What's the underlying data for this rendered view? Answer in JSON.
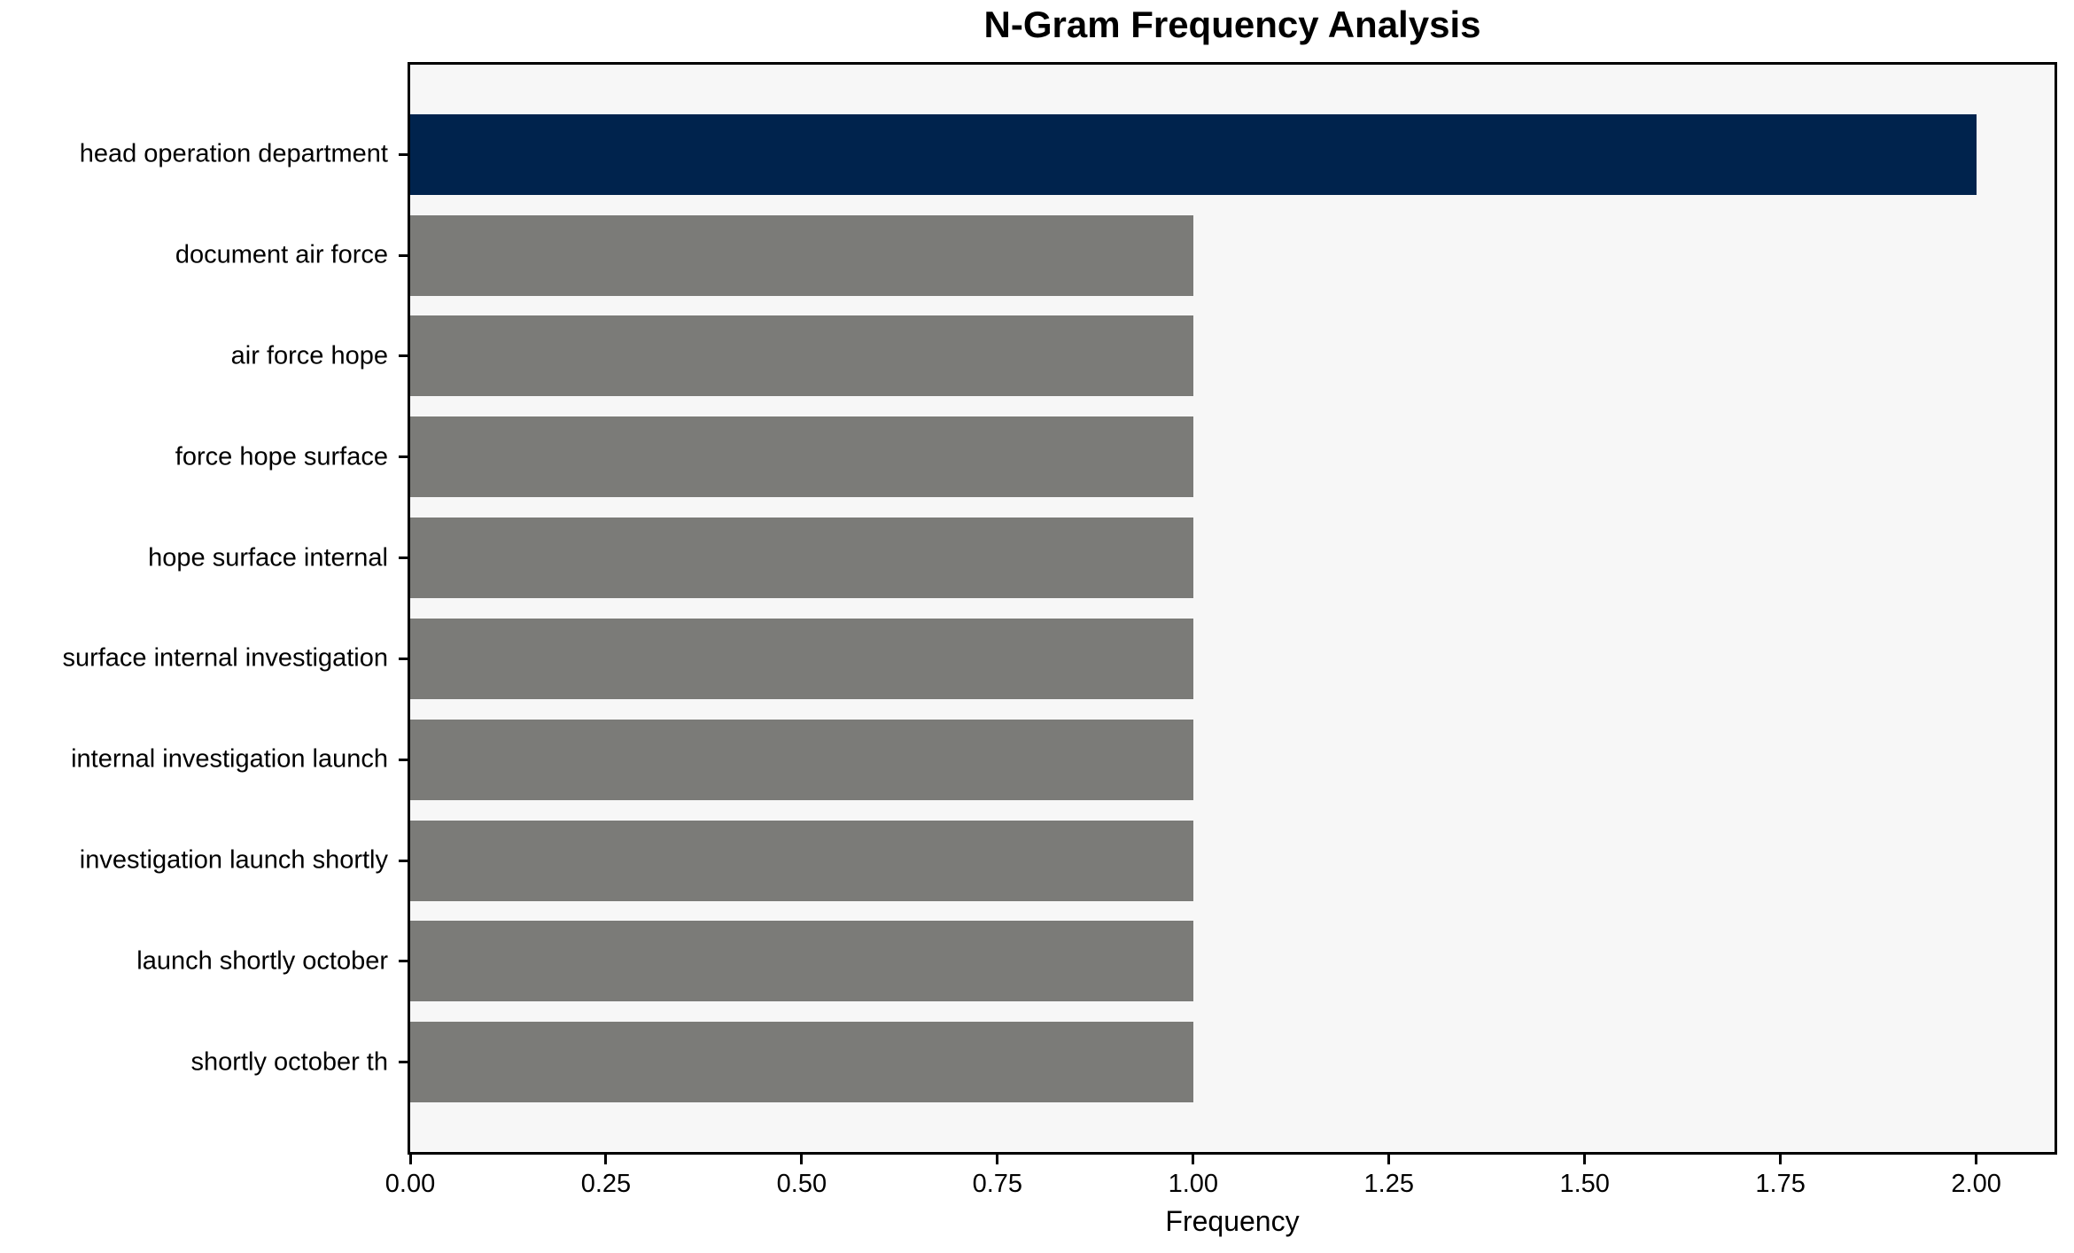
{
  "chart_data": {
    "type": "bar",
    "orientation": "horizontal",
    "title": "N-Gram Frequency Analysis",
    "xlabel": "Frequency",
    "ylabel": "",
    "categories": [
      "head operation department",
      "document air force",
      "air force hope",
      "force hope surface",
      "hope surface internal",
      "surface internal investigation",
      "internal investigation launch",
      "investigation launch shortly",
      "launch shortly october",
      "shortly october th"
    ],
    "values": [
      2,
      1,
      1,
      1,
      1,
      1,
      1,
      1,
      1,
      1
    ],
    "xlim": [
      0,
      2.1
    ],
    "x_ticks": [
      "0.00",
      "0.25",
      "0.50",
      "0.75",
      "1.00",
      "1.25",
      "1.50",
      "1.75",
      "2.00"
    ],
    "x_tick_values": [
      0,
      0.25,
      0.5,
      0.75,
      1.0,
      1.25,
      1.5,
      1.75,
      2.0
    ],
    "grid": false,
    "legend": null,
    "colors": {
      "highlight": "#00234d",
      "default": "#7b7b78",
      "bar_colors": [
        "#00234d",
        "#7b7b78",
        "#7b7b78",
        "#7b7b78",
        "#7b7b78",
        "#7b7b78",
        "#7b7b78",
        "#7b7b78",
        "#7b7b78",
        "#7b7b78"
      ],
      "plot_background": "#f7f7f7",
      "figure_background": "#ffffff",
      "axis": "#000000",
      "text": "#000000"
    }
  }
}
